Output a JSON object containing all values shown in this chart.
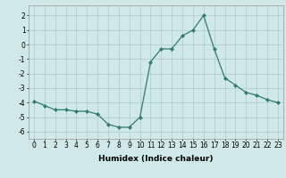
{
  "x": [
    0,
    1,
    2,
    3,
    4,
    5,
    6,
    7,
    8,
    9,
    10,
    11,
    12,
    13,
    14,
    15,
    16,
    17,
    18,
    19,
    20,
    21,
    22,
    23
  ],
  "y": [
    -3.9,
    -4.2,
    -4.5,
    -4.5,
    -4.6,
    -4.6,
    -4.8,
    -5.5,
    -5.7,
    -5.7,
    -5.0,
    -1.2,
    -0.3,
    -0.3,
    0.6,
    1.0,
    2.0,
    -0.3,
    -2.3,
    -2.8,
    -3.3,
    -3.5,
    -3.8,
    -4.0
  ],
  "line_color": "#2e7d6e",
  "marker": "D",
  "marker_size": 2.0,
  "linewidth": 0.9,
  "bg_color": "#d0e8e8",
  "grid_color": "#aacccc",
  "xlabel": "Humidex (Indice chaleur)",
  "xlabel_fontsize": 6.5,
  "tick_fontsize": 5.5,
  "ylim": [
    -6.5,
    2.7
  ],
  "yticks": [
    -6,
    -5,
    -4,
    -3,
    -2,
    -1,
    0,
    1,
    2
  ],
  "xticks": [
    0,
    1,
    2,
    3,
    4,
    5,
    6,
    7,
    8,
    9,
    10,
    11,
    12,
    13,
    14,
    15,
    16,
    17,
    18,
    19,
    20,
    21,
    22,
    23
  ],
  "xlim": [
    -0.5,
    23.5
  ]
}
